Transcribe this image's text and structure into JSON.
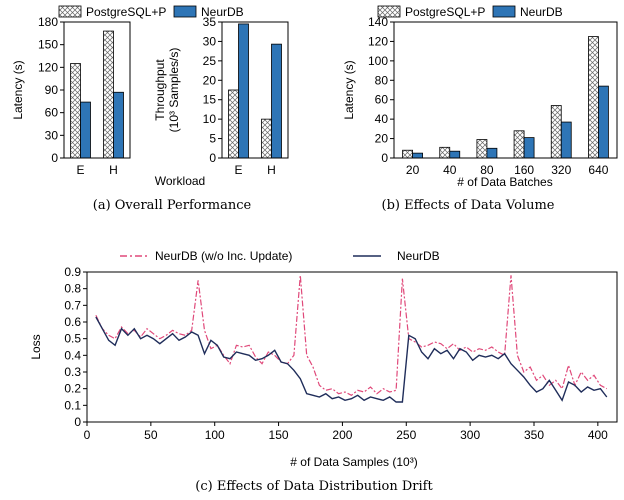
{
  "colors": {
    "postgres_fill": "#ffffff",
    "postgres_hatch": "#666666",
    "neurdb_bar": "#2e75b6",
    "neurdb_line": "#1f2d5a",
    "no_inc_line": "#e0497a"
  },
  "legend_top": {
    "postgres": "PostgreSQL+P",
    "neurdb": "NeurDB"
  },
  "legend_bottom": {
    "no_inc": "NeurDB (w/o Inc. Update)",
    "neurdb": "NeurDB"
  },
  "captions": {
    "a": "(a)  Overall Performance",
    "b": "(b)  Effects of Data Volume",
    "c": "(c)  Effects of Data Distribution Drift"
  },
  "shared_xlabel_a": "Workload",
  "chart_data": [
    {
      "id": "a1",
      "type": "bar",
      "categories": [
        "E",
        "H"
      ],
      "series": [
        {
          "name": "PostgreSQL+P",
          "values": [
            125,
            168
          ]
        },
        {
          "name": "NeurDB",
          "values": [
            74,
            87
          ]
        }
      ],
      "ylabel": "Latency (s)",
      "ylim": [
        0,
        180
      ],
      "yticks": [
        "0",
        "30",
        "60",
        "90",
        "120",
        "150",
        "180"
      ]
    },
    {
      "id": "a2",
      "type": "bar",
      "categories": [
        "E",
        "H"
      ],
      "series": [
        {
          "name": "PostgreSQL+P",
          "values": [
            17.5,
            10
          ]
        },
        {
          "name": "NeurDB",
          "values": [
            34.5,
            29.3
          ]
        }
      ],
      "ylabel_line1": "Throughput",
      "ylabel_line2": "(10³ Samples/s)",
      "ylim": [
        0,
        35
      ],
      "yticks": [
        "0",
        "5",
        "10",
        "15",
        "20",
        "25",
        "30",
        "35"
      ]
    },
    {
      "id": "b",
      "type": "bar",
      "categories": [
        "20",
        "40",
        "80",
        "160",
        "320",
        "640"
      ],
      "series": [
        {
          "name": "PostgreSQL+P",
          "values": [
            8,
            11,
            19,
            28,
            54,
            125
          ]
        },
        {
          "name": "NeurDB",
          "values": [
            5,
            7,
            10,
            21,
            37,
            74
          ]
        }
      ],
      "xlabel": "# of Data Batches",
      "ylabel": "Latency (s)",
      "ylim": [
        0,
        140
      ],
      "yticks": [
        "0",
        "20",
        "40",
        "60",
        "80",
        "100",
        "120",
        "140"
      ]
    },
    {
      "id": "c",
      "type": "line",
      "xlabel": "# of Data Samples (10³)",
      "ylabel": "Loss",
      "xlim": [
        0,
        415
      ],
      "ylim": [
        0,
        0.9
      ],
      "xticks": [
        "0",
        "50",
        "100",
        "150",
        "200",
        "250",
        "300",
        "350",
        "400"
      ],
      "yticks": [
        "0",
        "0.1",
        "0.2",
        "0.3",
        "0.4",
        "0.5",
        "0.6",
        "0.7",
        "0.8",
        "0.9"
      ],
      "series": [
        {
          "name": "NeurDB (w/o Inc. Update)",
          "x": [
            7,
            12,
            17,
            22,
            27,
            32,
            37,
            42,
            47,
            52,
            57,
            62,
            67,
            72,
            77,
            82,
            87,
            92,
            97,
            102,
            107,
            112,
            117,
            122,
            127,
            132,
            137,
            142,
            147,
            152,
            157,
            162,
            167,
            172,
            177,
            182,
            187,
            192,
            197,
            202,
            207,
            212,
            217,
            222,
            227,
            232,
            237,
            242,
            247,
            252,
            257,
            262,
            267,
            272,
            277,
            282,
            287,
            292,
            297,
            302,
            307,
            312,
            317,
            322,
            327,
            332,
            337,
            342,
            347,
            352,
            357,
            362,
            367,
            372,
            377,
            382,
            387,
            392,
            397,
            402,
            407
          ],
          "y": [
            0.64,
            0.56,
            0.52,
            0.5,
            0.57,
            0.53,
            0.55,
            0.51,
            0.56,
            0.53,
            0.5,
            0.52,
            0.55,
            0.53,
            0.52,
            0.55,
            0.85,
            0.55,
            0.44,
            0.46,
            0.4,
            0.35,
            0.46,
            0.45,
            0.46,
            0.39,
            0.35,
            0.42,
            0.4,
            0.36,
            0.35,
            0.4,
            0.88,
            0.4,
            0.33,
            0.22,
            0.19,
            0.2,
            0.17,
            0.18,
            0.16,
            0.19,
            0.18,
            0.21,
            0.17,
            0.2,
            0.18,
            0.19,
            0.86,
            0.5,
            0.48,
            0.45,
            0.46,
            0.48,
            0.47,
            0.44,
            0.47,
            0.43,
            0.45,
            0.42,
            0.44,
            0.43,
            0.45,
            0.42,
            0.4,
            0.88,
            0.4,
            0.3,
            0.33,
            0.25,
            0.28,
            0.22,
            0.25,
            0.2,
            0.34,
            0.22,
            0.3,
            0.25,
            0.28,
            0.22,
            0.2
          ]
        },
        {
          "name": "NeurDB",
          "x": [
            7,
            12,
            17,
            22,
            27,
            32,
            37,
            42,
            47,
            52,
            57,
            62,
            67,
            72,
            77,
            82,
            87,
            92,
            97,
            102,
            107,
            112,
            117,
            122,
            127,
            132,
            137,
            142,
            147,
            152,
            157,
            162,
            167,
            172,
            177,
            182,
            187,
            192,
            197,
            202,
            207,
            212,
            217,
            222,
            227,
            232,
            237,
            242,
            247,
            252,
            257,
            262,
            267,
            272,
            277,
            282,
            287,
            292,
            297,
            302,
            307,
            312,
            317,
            322,
            327,
            332,
            337,
            342,
            347,
            352,
            357,
            362,
            367,
            372,
            377,
            382,
            387,
            392,
            397,
            402,
            407
          ],
          "y": [
            0.63,
            0.56,
            0.49,
            0.46,
            0.56,
            0.52,
            0.56,
            0.5,
            0.52,
            0.5,
            0.47,
            0.5,
            0.53,
            0.49,
            0.51,
            0.54,
            0.52,
            0.41,
            0.49,
            0.46,
            0.39,
            0.38,
            0.42,
            0.41,
            0.4,
            0.37,
            0.38,
            0.4,
            0.43,
            0.36,
            0.35,
            0.31,
            0.26,
            0.17,
            0.16,
            0.15,
            0.17,
            0.14,
            0.15,
            0.13,
            0.14,
            0.16,
            0.13,
            0.15,
            0.14,
            0.13,
            0.15,
            0.12,
            0.12,
            0.52,
            0.5,
            0.42,
            0.38,
            0.44,
            0.41,
            0.43,
            0.38,
            0.44,
            0.42,
            0.37,
            0.4,
            0.39,
            0.4,
            0.38,
            0.41,
            0.35,
            0.31,
            0.27,
            0.22,
            0.18,
            0.2,
            0.25,
            0.19,
            0.13,
            0.24,
            0.22,
            0.18,
            0.21,
            0.19,
            0.2,
            0.15
          ]
        }
      ]
    }
  ]
}
